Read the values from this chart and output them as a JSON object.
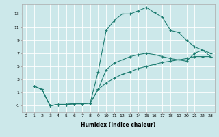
{
  "xlabel": "Humidex (Indice chaleur)",
  "bg_color": "#cce8ea",
  "grid_color": "#ffffff",
  "line_color": "#1e7d72",
  "xlim": [
    -0.5,
    23.5
  ],
  "ylim": [
    -2.0,
    14.5
  ],
  "xticks": [
    0,
    1,
    2,
    3,
    4,
    5,
    6,
    7,
    8,
    9,
    10,
    11,
    12,
    13,
    14,
    15,
    16,
    17,
    18,
    19,
    20,
    21,
    22,
    23
  ],
  "yticks": [
    -1,
    1,
    3,
    5,
    7,
    9,
    11,
    13
  ],
  "line1_x": [
    1,
    2,
    3,
    4,
    5,
    6,
    7,
    8,
    9,
    10,
    11,
    12,
    13,
    14,
    15,
    16,
    17,
    18,
    19,
    20,
    21,
    22,
    23
  ],
  "line1_y": [
    2.0,
    1.5,
    -1.0,
    -0.8,
    -0.8,
    -0.7,
    -0.7,
    -0.6,
    4.2,
    10.5,
    12.0,
    13.0,
    13.0,
    13.5,
    14.0,
    13.2,
    12.5,
    10.5,
    10.2,
    9.0,
    8.0,
    7.5,
    7.0
  ],
  "line2_x": [
    1,
    2,
    3,
    4,
    5,
    6,
    7,
    8,
    9,
    10,
    11,
    12,
    13,
    14,
    15,
    16,
    17,
    18,
    19,
    20,
    21,
    22,
    23
  ],
  "line2_y": [
    2.0,
    1.5,
    -1.0,
    -0.8,
    -0.8,
    -0.7,
    -0.7,
    -0.6,
    1.5,
    4.5,
    5.5,
    6.0,
    6.5,
    6.8,
    7.0,
    6.8,
    6.5,
    6.2,
    6.0,
    5.8,
    7.0,
    7.5,
    6.5
  ],
  "line3_x": [
    1,
    2,
    3,
    4,
    5,
    6,
    7,
    8,
    9,
    10,
    11,
    12,
    13,
    14,
    15,
    16,
    17,
    18,
    19,
    20,
    21,
    22,
    23
  ],
  "line3_y": [
    2.0,
    1.5,
    -1.0,
    -0.8,
    -0.8,
    -0.7,
    -0.7,
    -0.6,
    1.5,
    2.5,
    3.2,
    3.8,
    4.2,
    4.7,
    5.0,
    5.3,
    5.6,
    5.8,
    6.0,
    6.2,
    6.5,
    6.5,
    6.5
  ],
  "xlabel_fontsize": 5.5,
  "tick_fontsize": 4.5,
  "linewidth": 0.8,
  "markersize": 3
}
